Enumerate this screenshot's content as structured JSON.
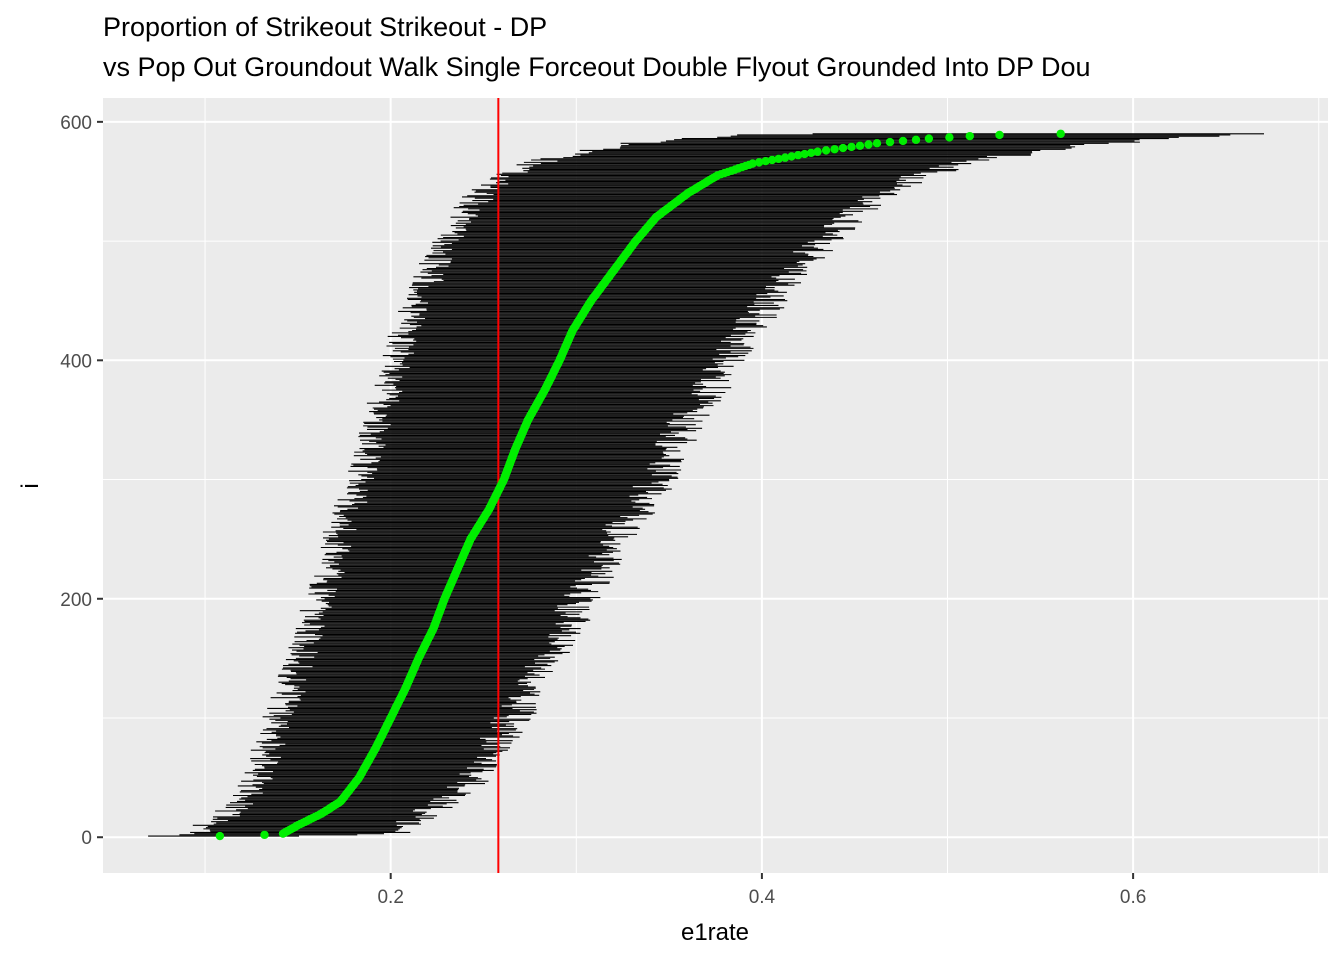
{
  "chart_data": {
    "type": "scatter",
    "title": "Proportion of  Strikeout Strikeout - DP",
    "subtitle": "vs Pop Out Groundout Walk Single Forceout Double Flyout Grounded Into DP Dou",
    "xlabel": "e1rate",
    "ylabel": "i",
    "xlim": [
      0.045,
      0.705
    ],
    "ylim": [
      -30,
      620
    ],
    "x_ticks": [
      0.2,
      0.4,
      0.6
    ],
    "x_tick_labels": [
      "0.2",
      "0.4",
      "0.6"
    ],
    "y_ticks": [
      0,
      200,
      400,
      600
    ],
    "y_tick_labels": [
      "0",
      "200",
      "400",
      "600"
    ],
    "grid": true,
    "reference_line": {
      "orientation": "vertical",
      "x": 0.258,
      "color": "#ff0000"
    },
    "n_points": 590,
    "point_color": "#00ee00",
    "interval_color": "#000000",
    "points": [
      {
        "i": 1,
        "x": 0.108,
        "lo": 0.065,
        "hi": 0.16
      },
      {
        "i": 2,
        "x": 0.132,
        "lo": 0.085,
        "hi": 0.185
      },
      {
        "i": 3,
        "x": 0.142,
        "lo": 0.095,
        "hi": 0.2
      },
      {
        "i": 10,
        "x": 0.15,
        "lo": 0.102,
        "hi": 0.206
      },
      {
        "i": 20,
        "x": 0.163,
        "lo": 0.112,
        "hi": 0.218
      },
      {
        "i": 30,
        "x": 0.173,
        "lo": 0.12,
        "hi": 0.232
      },
      {
        "i": 50,
        "x": 0.183,
        "lo": 0.128,
        "hi": 0.244
      },
      {
        "i": 75,
        "x": 0.192,
        "lo": 0.134,
        "hi": 0.255
      },
      {
        "i": 100,
        "x": 0.2,
        "lo": 0.139,
        "hi": 0.266
      },
      {
        "i": 125,
        "x": 0.208,
        "lo": 0.146,
        "hi": 0.276
      },
      {
        "i": 150,
        "x": 0.215,
        "lo": 0.151,
        "hi": 0.285
      },
      {
        "i": 175,
        "x": 0.223,
        "lo": 0.156,
        "hi": 0.295
      },
      {
        "i": 200,
        "x": 0.229,
        "lo": 0.162,
        "hi": 0.302
      },
      {
        "i": 225,
        "x": 0.236,
        "lo": 0.167,
        "hi": 0.312
      },
      {
        "i": 250,
        "x": 0.243,
        "lo": 0.171,
        "hi": 0.321
      },
      {
        "i": 275,
        "x": 0.253,
        "lo": 0.177,
        "hi": 0.333
      },
      {
        "i": 300,
        "x": 0.261,
        "lo": 0.183,
        "hi": 0.344
      },
      {
        "i": 325,
        "x": 0.267,
        "lo": 0.188,
        "hi": 0.351
      },
      {
        "i": 350,
        "x": 0.274,
        "lo": 0.192,
        "hi": 0.36
      },
      {
        "i": 375,
        "x": 0.283,
        "lo": 0.198,
        "hi": 0.372
      },
      {
        "i": 400,
        "x": 0.291,
        "lo": 0.203,
        "hi": 0.382
      },
      {
        "i": 425,
        "x": 0.298,
        "lo": 0.207,
        "hi": 0.392
      },
      {
        "i": 450,
        "x": 0.308,
        "lo": 0.214,
        "hi": 0.404
      },
      {
        "i": 475,
        "x": 0.32,
        "lo": 0.222,
        "hi": 0.418
      },
      {
        "i": 500,
        "x": 0.332,
        "lo": 0.23,
        "hi": 0.433
      },
      {
        "i": 520,
        "x": 0.343,
        "lo": 0.238,
        "hi": 0.447
      },
      {
        "i": 540,
        "x": 0.36,
        "lo": 0.249,
        "hi": 0.466
      },
      {
        "i": 555,
        "x": 0.376,
        "lo": 0.261,
        "hi": 0.486
      },
      {
        "i": 565,
        "x": 0.395,
        "lo": 0.275,
        "hi": 0.508
      },
      {
        "i": 575,
        "x": 0.43,
        "lo": 0.305,
        "hi": 0.548
      },
      {
        "i": 582,
        "x": 0.462,
        "lo": 0.332,
        "hi": 0.586
      },
      {
        "i": 586,
        "x": 0.49,
        "lo": 0.356,
        "hi": 0.615
      },
      {
        "i": 588,
        "x": 0.512,
        "lo": 0.378,
        "hi": 0.636
      },
      {
        "i": 589,
        "x": 0.528,
        "lo": 0.393,
        "hi": 0.65
      },
      {
        "i": 590,
        "x": 0.561,
        "lo": 0.43,
        "hi": 0.675
      }
    ]
  }
}
